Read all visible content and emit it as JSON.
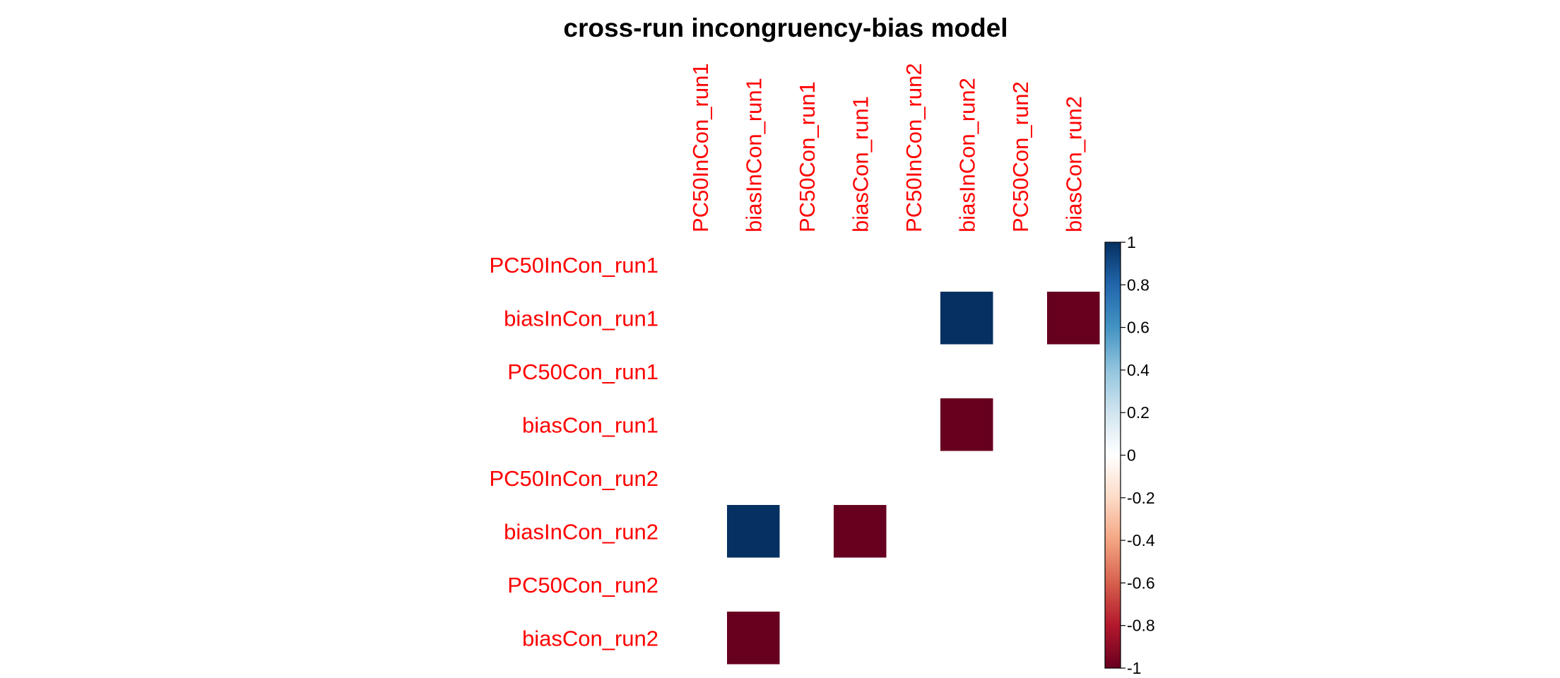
{
  "chart_data": {
    "type": "heatmap",
    "title": "cross-run incongruency-bias model",
    "rows": [
      "PC50InCon_run1",
      "biasInCon_run1",
      "PC50Con_run1",
      "biasCon_run1",
      "PC50InCon_run2",
      "biasInCon_run2",
      "PC50Con_run2",
      "biasCon_run2"
    ],
    "columns": [
      "PC50InCon_run1",
      "biasInCon_run1",
      "PC50Con_run1",
      "biasCon_run1",
      "PC50InCon_run2",
      "biasInCon_run2",
      "PC50Con_run2",
      "biasCon_run2"
    ],
    "values": [
      [
        0,
        0,
        0,
        0,
        0,
        0,
        0,
        0
      ],
      [
        0,
        0,
        0,
        0,
        0,
        1,
        0,
        -1
      ],
      [
        0,
        0,
        0,
        0,
        0,
        0,
        0,
        0
      ],
      [
        0,
        0,
        0,
        0,
        0,
        -1,
        0,
        0
      ],
      [
        0,
        0,
        0,
        0,
        0,
        0,
        0,
        0
      ],
      [
        0,
        1,
        0,
        -1,
        0,
        0,
        0,
        0
      ],
      [
        0,
        0,
        0,
        0,
        0,
        0,
        0,
        0
      ],
      [
        0,
        -1,
        0,
        0,
        0,
        0,
        0,
        0
      ]
    ],
    "color_scale": {
      "range": [
        -1,
        1
      ],
      "ticks": [
        1,
        0.8,
        0.6,
        0.4,
        0.2,
        0,
        -0.2,
        -0.4,
        -0.6,
        -0.8,
        -1
      ],
      "tick_labels": [
        "1",
        "0.8",
        "0.6",
        "0.4",
        "0.2",
        "0",
        "-0.2",
        "-0.4",
        "-0.6",
        "-0.8",
        "-1"
      ],
      "stops": [
        "#67001F",
        "#B2182B",
        "#D6604D",
        "#F4A582",
        "#FDDBC7",
        "#FFFFFF",
        "#D1E5F0",
        "#92C5DE",
        "#4393C3",
        "#2166AC",
        "#053061"
      ]
    },
    "label_color": "#FF0000",
    "legend_position": "right"
  }
}
